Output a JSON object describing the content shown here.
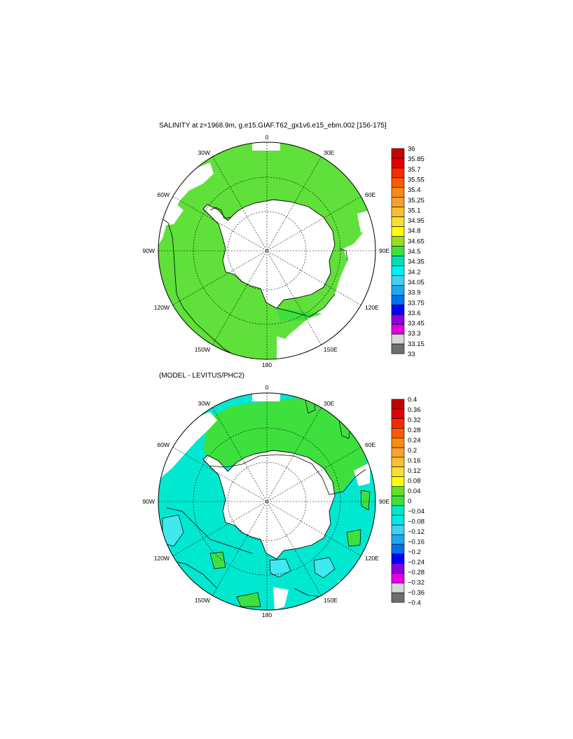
{
  "panels": [
    {
      "id": "salinity",
      "title": "SALINITY at z=1968.9m, g.e15.GIAF.T62_gx1v6.e15_ebm.002 [156-175]",
      "lon_labels": [
        "0",
        "30E",
        "60E",
        "90E",
        "120E",
        "150E",
        "180",
        "150W",
        "120W",
        "90W",
        "60W",
        "30W"
      ],
      "colorbar": {
        "levels": [
          "36",
          "35.85",
          "35.7",
          "35.55",
          "35.4",
          "35.25",
          "35.1",
          "34.95",
          "34.8",
          "34.65",
          "34.5",
          "34.35",
          "34.2",
          "34.05",
          "33.9",
          "33.75",
          "33.6",
          "33.45",
          "33.3",
          "33.15",
          "33"
        ],
        "colors": [
          "#c80000",
          "#e00000",
          "#f52b00",
          "#fa5a00",
          "#f88b10",
          "#f8a030",
          "#f8c030",
          "#f8e030",
          "#ffff00",
          "#99e01a",
          "#3ee03e",
          "#00e0b4",
          "#00f0f0",
          "#40d0f0",
          "#20a8f0",
          "#0070f0",
          "#0000ff",
          "#8a00e0",
          "#e000e0",
          "#d8d8d8",
          "#6e6e6e"
        ]
      },
      "field_colors": {
        "main": "#5fe03a",
        "secondary": "#3ee03e",
        "land": "#ffffff"
      }
    },
    {
      "id": "difference",
      "title": "(MODEL - LEVITUS/PHC2)",
      "lon_labels": [
        "0",
        "30E",
        "60E",
        "90E",
        "120E",
        "150E",
        "180",
        "150W",
        "120W",
        "90W",
        "60W",
        "30W"
      ],
      "colorbar": {
        "levels": [
          "0.4",
          "0.36",
          "0.32",
          "0.28",
          "0.24",
          "0.2",
          "0.16",
          "0.12",
          "0.08",
          "0.04",
          "0",
          "−0.04",
          "−0.08",
          "−0.12",
          "−0.16",
          "−0.2",
          "−0.24",
          "−0.28",
          "−0.32",
          "−0.36",
          "−0.4"
        ],
        "colors": [
          "#c80000",
          "#e00000",
          "#f52b00",
          "#fa5a00",
          "#f88b10",
          "#f8a030",
          "#f8c030",
          "#f8e030",
          "#ffff00",
          "#66e022",
          "#3ee03e",
          "#00e8c8",
          "#00e8e8",
          "#40d0f0",
          "#20a8f0",
          "#0070f0",
          "#0000ff",
          "#8a00e0",
          "#e000e0",
          "#d8d8d8",
          "#6e6e6e"
        ]
      },
      "field_colors": {
        "main": "#3ee03e",
        "secondary": "#00e8d0",
        "tertiary": "#40e8f0",
        "land": "#ffffff"
      }
    }
  ]
}
